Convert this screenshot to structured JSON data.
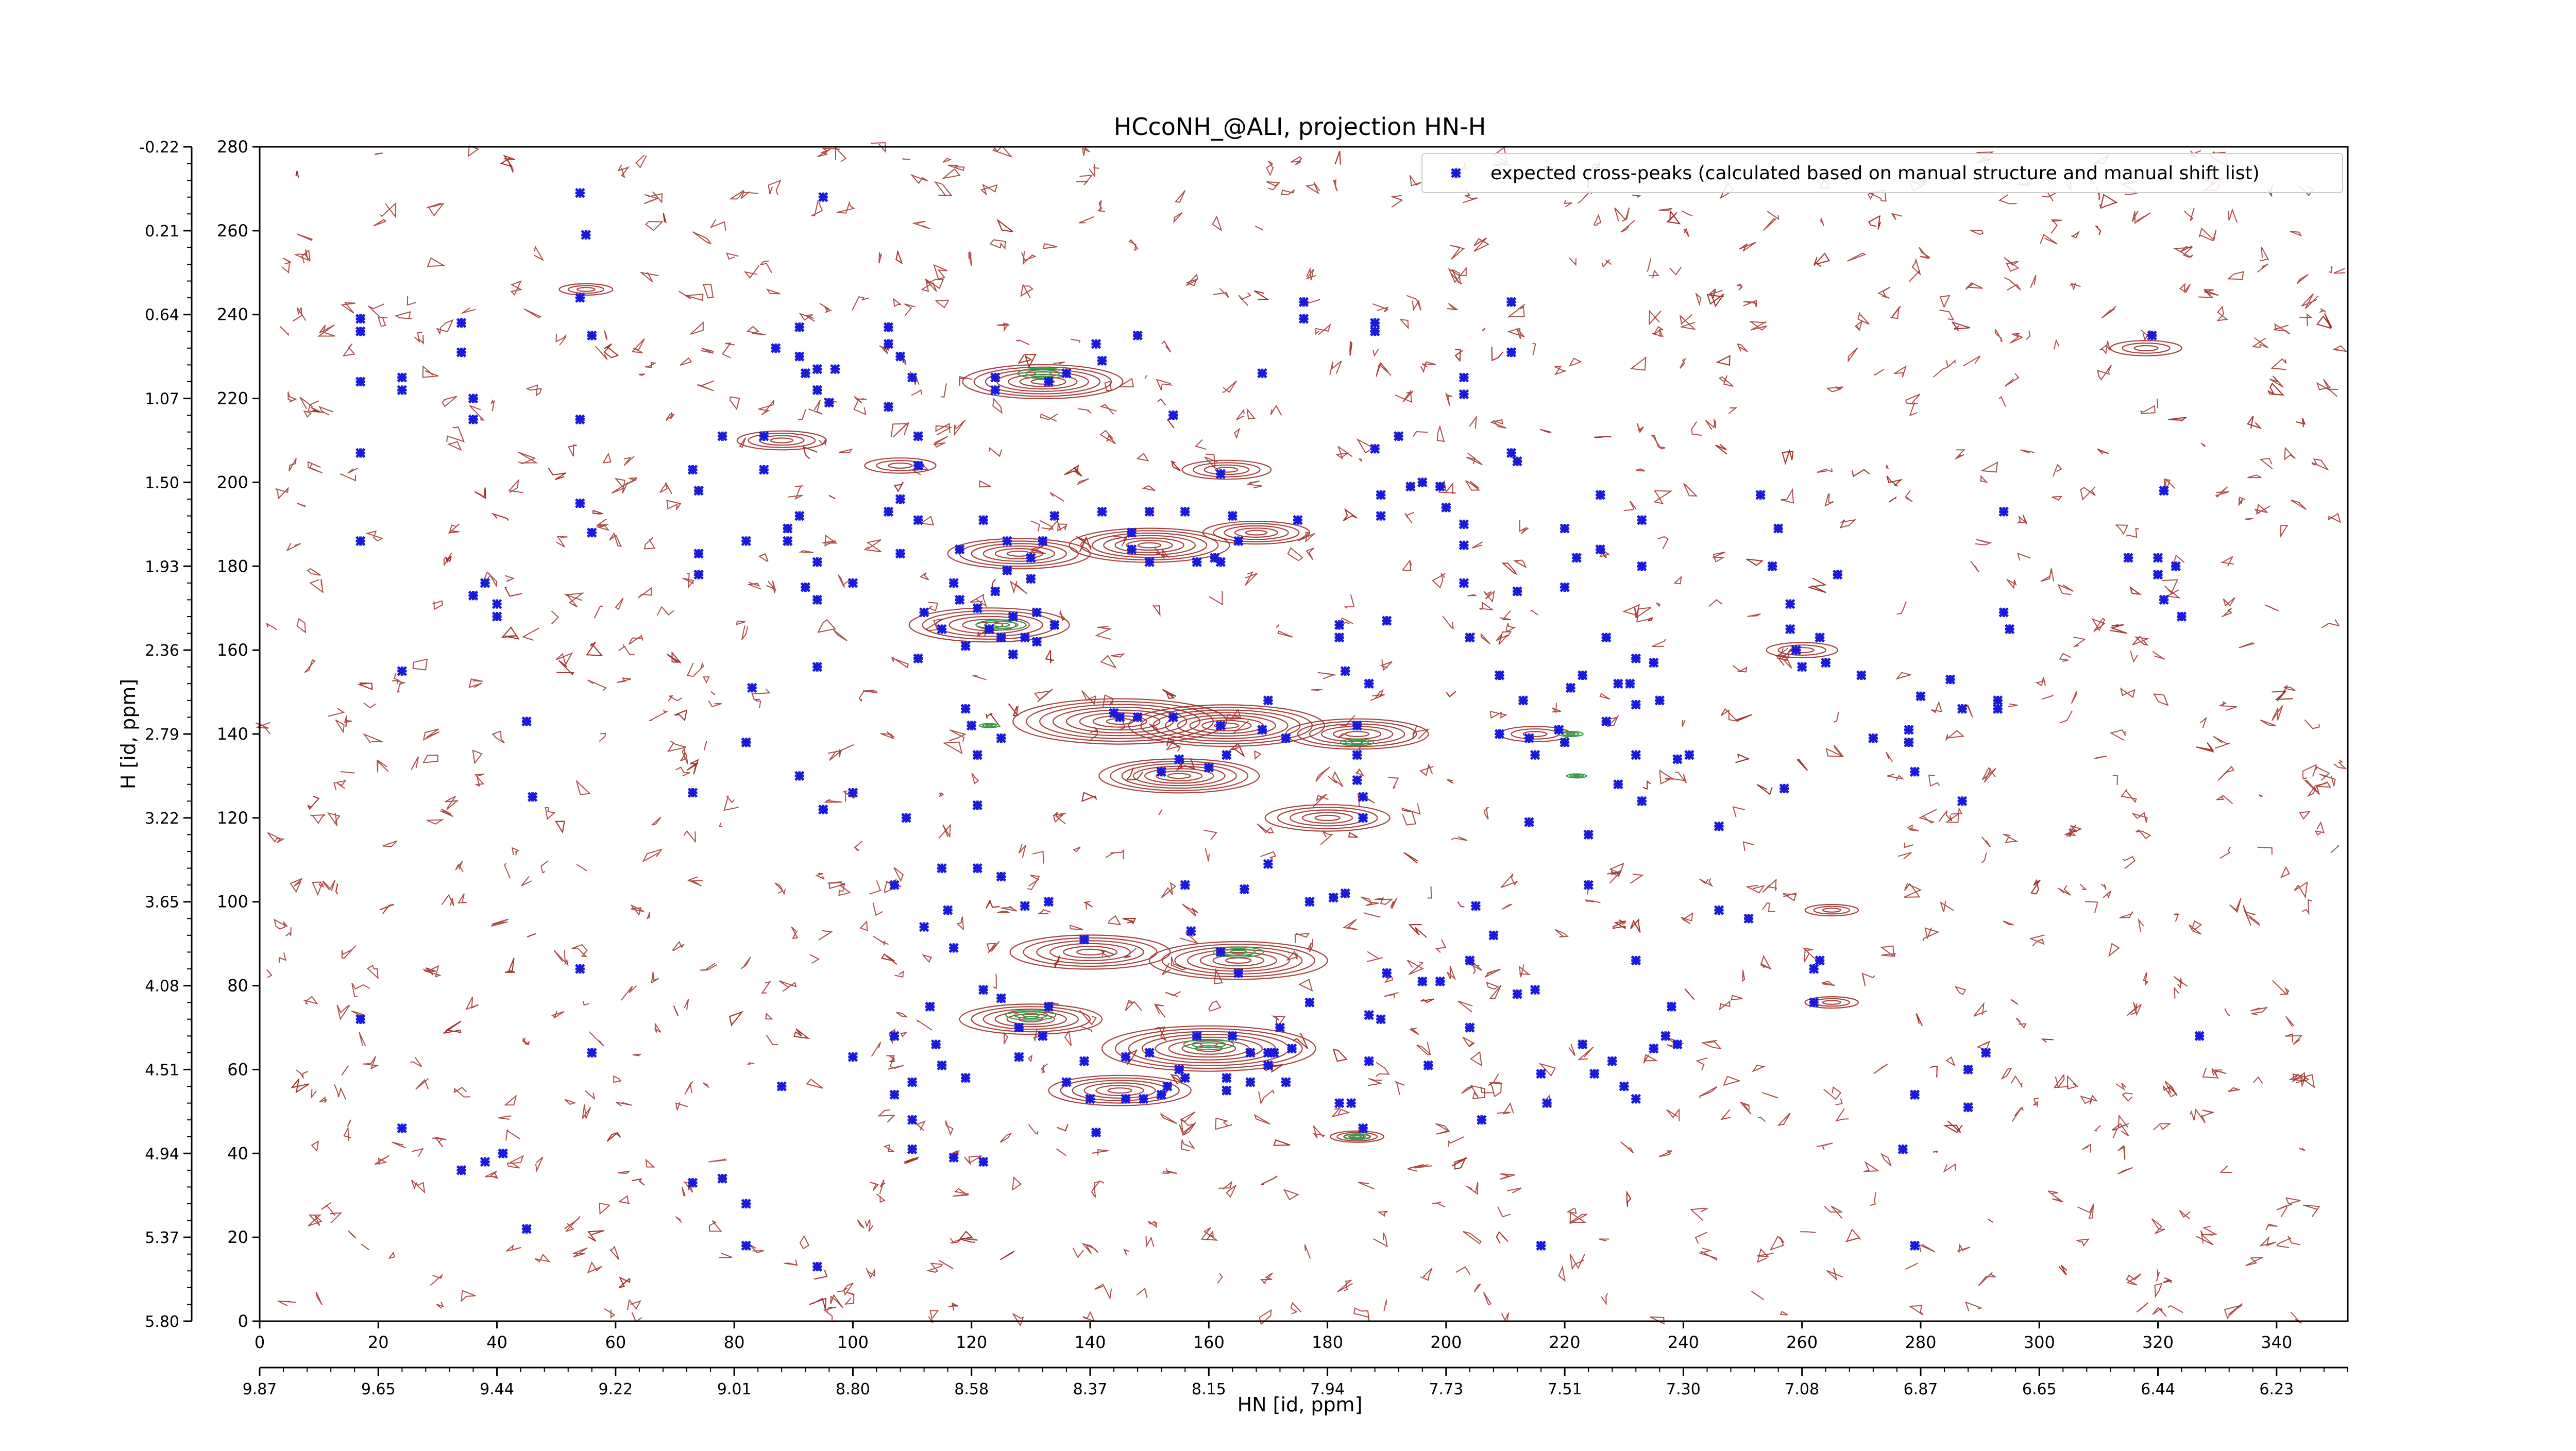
{
  "chart_data": {
    "type": "scatter",
    "title": "HCcoNH_@ALI, projection HN-H",
    "xlabel": "HN [id, ppm]",
    "ylabel": "H [id, ppm]",
    "xlim": [
      0,
      352
    ],
    "ylim": [
      0,
      280
    ],
    "x_ticks": [
      0,
      20,
      40,
      60,
      80,
      100,
      120,
      140,
      160,
      180,
      200,
      220,
      240,
      260,
      280,
      300,
      320,
      340
    ],
    "y_ticks": [
      0,
      20,
      40,
      60,
      80,
      100,
      120,
      140,
      160,
      180,
      200,
      220,
      240,
      260,
      280
    ],
    "x_ppm_labels": [
      "9.87",
      "9.65",
      "9.44",
      "9.22",
      "9.01",
      "8.80",
      "8.58",
      "8.37",
      "8.15",
      "7.94",
      "7.73",
      "7.51",
      "7.30",
      "7.08",
      "6.87",
      "6.65",
      "6.44",
      "6.23"
    ],
    "y_ppm_labels": [
      "5.80",
      "5.37",
      "4.94",
      "4.51",
      "4.08",
      "3.65",
      "3.22",
      "2.79",
      "2.36",
      "1.93",
      "1.50",
      "1.07",
      "0.64",
      "0.21",
      "-0.22"
    ],
    "legend": {
      "placement": "top-right",
      "label": "expected cross-peaks (calculated based on manual structure and manual shift list)"
    },
    "colors": {
      "markers": "#1a1adc",
      "contours_positive": "#a0302a",
      "contours_negative": "#3c9a4a"
    },
    "contour_clusters": [
      {
        "x": 132,
        "y": 224,
        "r": 9,
        "levels": 7
      },
      {
        "x": 88,
        "y": 210,
        "r": 5,
        "levels": 4
      },
      {
        "x": 108,
        "y": 204,
        "r": 4,
        "levels": 3
      },
      {
        "x": 163,
        "y": 203,
        "r": 5,
        "levels": 4
      },
      {
        "x": 128,
        "y": 183,
        "r": 8,
        "levels": 6
      },
      {
        "x": 150,
        "y": 185,
        "r": 9,
        "levels": 7
      },
      {
        "x": 168,
        "y": 188,
        "r": 6,
        "levels": 5
      },
      {
        "x": 123,
        "y": 166,
        "r": 9,
        "levels": 6
      },
      {
        "x": 145,
        "y": 143,
        "r": 12,
        "levels": 8
      },
      {
        "x": 163,
        "y": 142,
        "r": 11,
        "levels": 8
      },
      {
        "x": 185,
        "y": 140,
        "r": 8,
        "levels": 6
      },
      {
        "x": 155,
        "y": 130,
        "r": 9,
        "levels": 7
      },
      {
        "x": 180,
        "y": 120,
        "r": 7,
        "levels": 5
      },
      {
        "x": 140,
        "y": 88,
        "r": 9,
        "levels": 6
      },
      {
        "x": 165,
        "y": 86,
        "r": 10,
        "levels": 7
      },
      {
        "x": 130,
        "y": 72,
        "r": 8,
        "levels": 6
      },
      {
        "x": 160,
        "y": 65,
        "r": 12,
        "levels": 8
      },
      {
        "x": 145,
        "y": 55,
        "r": 8,
        "levels": 6
      },
      {
        "x": 185,
        "y": 44,
        "r": 3,
        "levels": 4
      },
      {
        "x": 260,
        "y": 160,
        "r": 4,
        "levels": 3
      },
      {
        "x": 318,
        "y": 232,
        "r": 4,
        "levels": 3
      },
      {
        "x": 55,
        "y": 246,
        "r": 3,
        "levels": 3
      },
      {
        "x": 215,
        "y": 140,
        "r": 4,
        "levels": 3
      },
      {
        "x": 265,
        "y": 98,
        "r": 3,
        "levels": 3
      },
      {
        "x": 265,
        "y": 76,
        "r": 3,
        "levels": 3
      }
    ],
    "negative_clusters": [
      {
        "x": 132,
        "y": 226,
        "r": 3
      },
      {
        "x": 125,
        "y": 166,
        "r": 3
      },
      {
        "x": 185,
        "y": 138,
        "r": 2
      },
      {
        "x": 165,
        "y": 88,
        "r": 3
      },
      {
        "x": 130,
        "y": 73,
        "r": 3
      },
      {
        "x": 160,
        "y": 66,
        "r": 3
      },
      {
        "x": 185,
        "y": 44,
        "r": 1.5
      },
      {
        "x": 221,
        "y": 140,
        "r": 1.5
      },
      {
        "x": 222,
        "y": 130,
        "r": 1.2
      },
      {
        "x": 123,
        "y": 142,
        "r": 1.2
      }
    ],
    "expected_peaks": [
      [
        17,
        236
      ],
      [
        17,
        239
      ],
      [
        17,
        224
      ],
      [
        17,
        207
      ],
      [
        17,
        186
      ],
      [
        17,
        72
      ],
      [
        24,
        222
      ],
      [
        24,
        225
      ],
      [
        24,
        155
      ],
      [
        24,
        46
      ],
      [
        34,
        238
      ],
      [
        34,
        231
      ],
      [
        34,
        36
      ],
      [
        36,
        220
      ],
      [
        36,
        215
      ],
      [
        36,
        173
      ],
      [
        38,
        176
      ],
      [
        38,
        38
      ],
      [
        40,
        171
      ],
      [
        40,
        168
      ],
      [
        41,
        40
      ],
      [
        45,
        143
      ],
      [
        45,
        22
      ],
      [
        46,
        125
      ],
      [
        54,
        269
      ],
      [
        54,
        244
      ],
      [
        54,
        215
      ],
      [
        54,
        84
      ],
      [
        54,
        195
      ],
      [
        55,
        259
      ],
      [
        56,
        235
      ],
      [
        56,
        188
      ],
      [
        56,
        64
      ],
      [
        73,
        33
      ],
      [
        73,
        126
      ],
      [
        73,
        203
      ],
      [
        74,
        198
      ],
      [
        74,
        178
      ],
      [
        74,
        183
      ],
      [
        78,
        34
      ],
      [
        78,
        211
      ],
      [
        82,
        18
      ],
      [
        82,
        28
      ],
      [
        82,
        186
      ],
      [
        82,
        138
      ],
      [
        83,
        151
      ],
      [
        85,
        211
      ],
      [
        85,
        203
      ],
      [
        88,
        56
      ],
      [
        87,
        232
      ],
      [
        89,
        186
      ],
      [
        89,
        189
      ],
      [
        91,
        237
      ],
      [
        91,
        230
      ],
      [
        91,
        192
      ],
      [
        91,
        130
      ],
      [
        92,
        175
      ],
      [
        92,
        226
      ],
      [
        94,
        222
      ],
      [
        94,
        227
      ],
      [
        94,
        13
      ],
      [
        94,
        181
      ],
      [
        94,
        172
      ],
      [
        94,
        156
      ],
      [
        95,
        122
      ],
      [
        95,
        268
      ],
      [
        96,
        219
      ],
      [
        97,
        227
      ],
      [
        100,
        63
      ],
      [
        100,
        126
      ],
      [
        100,
        176
      ],
      [
        106,
        237
      ],
      [
        106,
        233
      ],
      [
        106,
        218
      ],
      [
        106,
        193
      ],
      [
        107,
        54
      ],
      [
        107,
        68
      ],
      [
        107,
        104
      ],
      [
        108,
        230
      ],
      [
        108,
        196
      ],
      [
        108,
        183
      ],
      [
        109,
        120
      ],
      [
        110,
        225
      ],
      [
        110,
        57
      ],
      [
        110,
        48
      ],
      [
        110,
        41
      ],
      [
        111,
        204
      ],
      [
        111,
        211
      ],
      [
        111,
        191
      ],
      [
        111,
        158
      ],
      [
        112,
        169
      ],
      [
        112,
        94
      ],
      [
        113,
        75
      ],
      [
        114,
        66
      ],
      [
        115,
        165
      ],
      [
        115,
        108
      ],
      [
        115,
        61
      ],
      [
        116,
        98
      ],
      [
        117,
        89
      ],
      [
        117,
        39
      ],
      [
        117,
        176
      ],
      [
        118,
        184
      ],
      [
        118,
        172
      ],
      [
        119,
        161
      ],
      [
        119,
        146
      ],
      [
        119,
        58
      ],
      [
        120,
        142
      ],
      [
        121,
        135
      ],
      [
        121,
        123
      ],
      [
        121,
        108
      ],
      [
        121,
        170
      ],
      [
        122,
        191
      ],
      [
        122,
        79
      ],
      [
        122,
        38
      ],
      [
        123,
        165
      ],
      [
        124,
        174
      ],
      [
        124,
        225
      ],
      [
        124,
        222
      ],
      [
        125,
        163
      ],
      [
        125,
        106
      ],
      [
        125,
        77
      ],
      [
        125,
        139
      ],
      [
        126,
        186
      ],
      [
        126,
        179
      ],
      [
        127,
        168
      ],
      [
        127,
        159
      ],
      [
        128,
        70
      ],
      [
        128,
        63
      ],
      [
        129,
        99
      ],
      [
        129,
        163
      ],
      [
        130,
        182
      ],
      [
        130,
        177
      ],
      [
        131,
        169
      ],
      [
        131,
        162
      ],
      [
        132,
        186
      ],
      [
        132,
        68
      ],
      [
        133,
        224
      ],
      [
        133,
        75
      ],
      [
        133,
        100
      ],
      [
        134,
        166
      ],
      [
        134,
        192
      ],
      [
        136,
        226
      ],
      [
        136,
        57
      ],
      [
        139,
        62
      ],
      [
        139,
        91
      ],
      [
        140,
        53
      ],
      [
        141,
        233
      ],
      [
        141,
        45
      ],
      [
        142,
        229
      ],
      [
        142,
        193
      ],
      [
        144,
        145
      ],
      [
        145,
        144
      ],
      [
        146,
        63
      ],
      [
        146,
        53
      ],
      [
        147,
        188
      ],
      [
        147,
        184
      ],
      [
        148,
        235
      ],
      [
        148,
        144
      ],
      [
        149,
        53
      ],
      [
        150,
        64
      ],
      [
        150,
        193
      ],
      [
        150,
        181
      ],
      [
        152,
        54
      ],
      [
        152,
        131
      ],
      [
        153,
        56
      ],
      [
        154,
        216
      ],
      [
        154,
        144
      ],
      [
        155,
        60
      ],
      [
        155,
        134
      ],
      [
        156,
        193
      ],
      [
        156,
        58
      ],
      [
        156,
        104
      ],
      [
        157,
        93
      ],
      [
        158,
        68
      ],
      [
        158,
        181
      ],
      [
        160,
        132
      ],
      [
        160,
        132
      ],
      [
        161,
        182
      ],
      [
        162,
        202
      ],
      [
        162,
        142
      ],
      [
        162,
        181
      ],
      [
        162,
        88
      ],
      [
        163,
        135
      ],
      [
        163,
        55
      ],
      [
        163,
        58
      ],
      [
        164,
        68
      ],
      [
        164,
        192
      ],
      [
        165,
        186
      ],
      [
        165,
        83
      ],
      [
        166,
        103
      ],
      [
        167,
        57
      ],
      [
        167,
        64
      ],
      [
        169,
        226
      ],
      [
        169,
        141
      ],
      [
        170,
        64
      ],
      [
        170,
        148
      ],
      [
        170,
        61
      ],
      [
        170,
        109
      ],
      [
        171,
        64
      ],
      [
        172,
        70
      ],
      [
        173,
        139
      ],
      [
        173,
        57
      ],
      [
        174,
        65
      ],
      [
        175,
        191
      ],
      [
        176,
        243
      ],
      [
        176,
        239
      ],
      [
        177,
        76
      ],
      [
        177,
        100
      ],
      [
        181,
        101
      ],
      [
        182,
        52
      ],
      [
        182,
        163
      ],
      [
        182,
        166
      ],
      [
        183,
        155
      ],
      [
        183,
        102
      ],
      [
        184,
        52
      ],
      [
        185,
        142
      ],
      [
        185,
        135
      ],
      [
        185,
        129
      ],
      [
        186,
        120
      ],
      [
        186,
        46
      ],
      [
        186,
        125
      ],
      [
        187,
        73
      ],
      [
        187,
        152
      ],
      [
        187,
        62
      ],
      [
        188,
        208
      ],
      [
        188,
        236
      ],
      [
        188,
        238
      ],
      [
        189,
        192
      ],
      [
        189,
        197
      ],
      [
        189,
        72
      ],
      [
        190,
        167
      ],
      [
        190,
        83
      ],
      [
        192,
        211
      ],
      [
        194,
        199
      ],
      [
        196,
        81
      ],
      [
        196,
        200
      ],
      [
        197,
        61
      ],
      [
        199,
        81
      ],
      [
        199,
        199
      ],
      [
        200,
        194
      ],
      [
        203,
        225
      ],
      [
        203,
        221
      ],
      [
        203,
        190
      ],
      [
        203,
        176
      ],
      [
        203,
        185
      ],
      [
        204,
        163
      ],
      [
        204,
        70
      ],
      [
        204,
        86
      ],
      [
        205,
        99
      ],
      [
        206,
        48
      ],
      [
        208,
        92
      ],
      [
        209,
        154
      ],
      [
        209,
        140
      ],
      [
        211,
        231
      ],
      [
        211,
        243
      ],
      [
        211,
        207
      ],
      [
        212,
        205
      ],
      [
        212,
        78
      ],
      [
        212,
        174
      ],
      [
        213,
        148
      ],
      [
        214,
        139
      ],
      [
        214,
        119
      ],
      [
        215,
        135
      ],
      [
        215,
        79
      ],
      [
        216,
        59
      ],
      [
        216,
        18
      ],
      [
        217,
        52
      ],
      [
        219,
        141
      ],
      [
        220,
        138
      ],
      [
        220,
        175
      ],
      [
        220,
        189
      ],
      [
        221,
        151
      ],
      [
        222,
        182
      ],
      [
        223,
        154
      ],
      [
        223,
        66
      ],
      [
        224,
        116
      ],
      [
        224,
        104
      ],
      [
        225,
        59
      ],
      [
        226,
        184
      ],
      [
        226,
        197
      ],
      [
        227,
        143
      ],
      [
        227,
        163
      ],
      [
        228,
        62
      ],
      [
        229,
        128
      ],
      [
        229,
        152
      ],
      [
        230,
        56
      ],
      [
        231,
        152
      ],
      [
        232,
        135
      ],
      [
        232,
        53
      ],
      [
        232,
        147
      ],
      [
        232,
        158
      ],
      [
        232,
        86
      ],
      [
        233,
        191
      ],
      [
        233,
        124
      ],
      [
        233,
        180
      ],
      [
        235,
        65
      ],
      [
        235,
        157
      ],
      [
        236,
        148
      ],
      [
        237,
        68
      ],
      [
        238,
        75
      ],
      [
        239,
        134
      ],
      [
        239,
        66
      ],
      [
        241,
        135
      ],
      [
        246,
        118
      ],
      [
        246,
        98
      ],
      [
        251,
        96
      ],
      [
        253,
        197
      ],
      [
        255,
        180
      ],
      [
        256,
        189
      ],
      [
        257,
        127
      ],
      [
        258,
        165
      ],
      [
        258,
        171
      ],
      [
        259,
        160
      ],
      [
        260,
        156
      ],
      [
        262,
        84
      ],
      [
        262,
        76
      ],
      [
        263,
        86
      ],
      [
        263,
        163
      ],
      [
        264,
        157
      ],
      [
        266,
        178
      ],
      [
        270,
        154
      ],
      [
        272,
        139
      ],
      [
        277,
        41
      ],
      [
        278,
        138
      ],
      [
        278,
        141
      ],
      [
        279,
        54
      ],
      [
        279,
        54
      ],
      [
        279,
        131
      ],
      [
        279,
        18
      ],
      [
        280,
        149
      ],
      [
        285,
        153
      ],
      [
        287,
        146
      ],
      [
        287,
        124
      ],
      [
        288,
        60
      ],
      [
        288,
        51
      ],
      [
        291,
        64
      ],
      [
        293,
        146
      ],
      [
        293,
        148
      ],
      [
        294,
        193
      ],
      [
        294,
        169
      ],
      [
        295,
        165
      ],
      [
        315,
        182
      ],
      [
        319,
        235
      ],
      [
        320,
        178
      ],
      [
        320,
        182
      ],
      [
        321,
        198
      ],
      [
        321,
        172
      ],
      [
        323,
        180
      ],
      [
        324,
        168
      ],
      [
        327,
        68
      ]
    ]
  }
}
